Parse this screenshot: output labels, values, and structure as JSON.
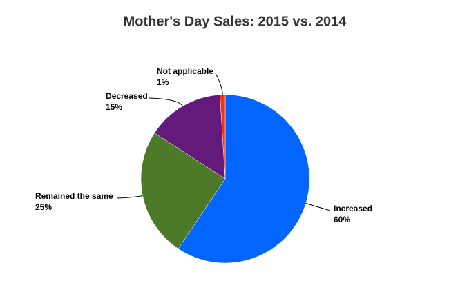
{
  "chart_data": {
    "type": "pie",
    "title": "Mother's Day Sales: 2015 vs. 2014",
    "categories": [
      "Increased",
      "Remained the same",
      "Decreased",
      "Not applicable"
    ],
    "values": [
      60,
      25,
      15,
      1
    ],
    "value_labels": [
      "60%",
      "25%",
      "15%",
      "1%"
    ],
    "colors": [
      "#0066ff",
      "#4d7a29",
      "#631a7a",
      "#f03218"
    ]
  }
}
